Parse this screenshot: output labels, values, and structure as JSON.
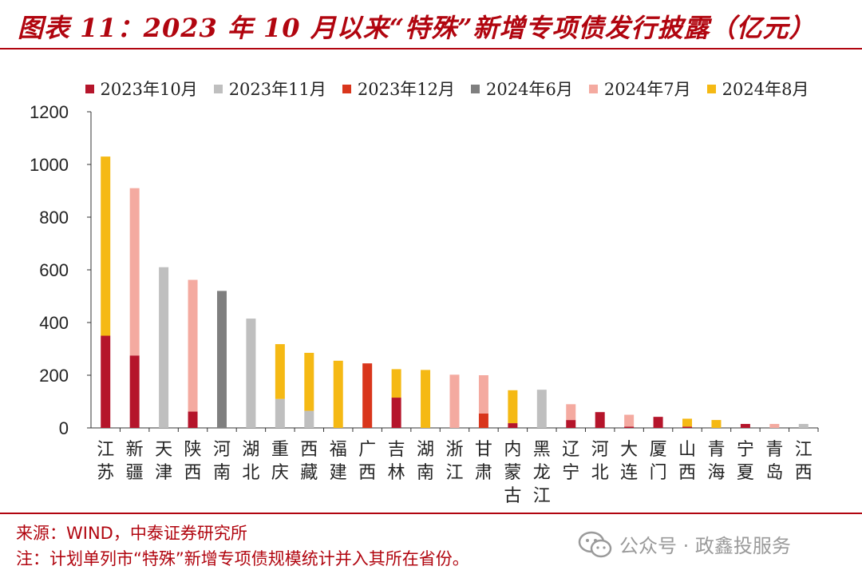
{
  "title": "图表 11：2023 年 10 月以来“特殊”新增专项债发行披露（亿元）",
  "footer": {
    "source": "来源：WIND，中泰证券研究所",
    "note": "注：计划单列市“特殊”新增专项债规模统计并入其所在省份。",
    "watermark": "公众号 · 政鑫投服务"
  },
  "chart_data": {
    "type": "bar",
    "stacked": true,
    "categories": [
      "江苏",
      "新疆",
      "天津",
      "陕西",
      "河南",
      "湖北",
      "重庆",
      "西藏",
      "福建",
      "广西",
      "吉林",
      "湖南",
      "浙江",
      "甘肃",
      "内蒙古",
      "黑龙江",
      "辽宁",
      "河北",
      "大连",
      "厦门",
      "山西",
      "青海",
      "宁夏",
      "青岛",
      "江西"
    ],
    "series": [
      {
        "name": "2023年10月",
        "color": "#b5152b",
        "values": [
          350,
          275,
          0,
          62,
          0,
          0,
          0,
          0,
          0,
          0,
          115,
          0,
          0,
          0,
          18,
          0,
          30,
          60,
          5,
          42,
          5,
          0,
          15,
          0,
          0
        ]
      },
      {
        "name": "2023年11月",
        "color": "#bfbfbf",
        "values": [
          0,
          0,
          610,
          0,
          0,
          415,
          110,
          65,
          0,
          0,
          0,
          0,
          0,
          0,
          0,
          145,
          0,
          0,
          0,
          0,
          0,
          0,
          0,
          0,
          15
        ]
      },
      {
        "name": "2023年12月",
        "color": "#d9361c",
        "values": [
          0,
          0,
          0,
          0,
          0,
          0,
          0,
          0,
          0,
          245,
          0,
          0,
          0,
          55,
          0,
          0,
          0,
          0,
          0,
          0,
          0,
          0,
          0,
          0,
          0
        ]
      },
      {
        "name": "2024年6月",
        "color": "#7f7f7f",
        "values": [
          0,
          0,
          0,
          0,
          520,
          0,
          0,
          0,
          0,
          0,
          0,
          0,
          0,
          0,
          0,
          0,
          0,
          0,
          0,
          0,
          0,
          0,
          0,
          0,
          0
        ]
      },
      {
        "name": "2024年7月",
        "color": "#f4aaa0",
        "values": [
          0,
          635,
          0,
          500,
          0,
          0,
          0,
          0,
          0,
          0,
          0,
          0,
          202,
          145,
          0,
          0,
          60,
          0,
          45,
          0,
          0,
          0,
          0,
          15,
          0
        ]
      },
      {
        "name": "2024年8月",
        "color": "#f5b914",
        "values": [
          680,
          0,
          0,
          0,
          0,
          0,
          208,
          220,
          255,
          0,
          108,
          220,
          0,
          0,
          125,
          0,
          0,
          0,
          0,
          0,
          30,
          30,
          0,
          0,
          0
        ]
      }
    ],
    "yticks": [
      0,
      200,
      400,
      600,
      800,
      1000,
      1200
    ],
    "ylim": [
      0,
      1200
    ],
    "legend_position": "top",
    "grid": false
  }
}
